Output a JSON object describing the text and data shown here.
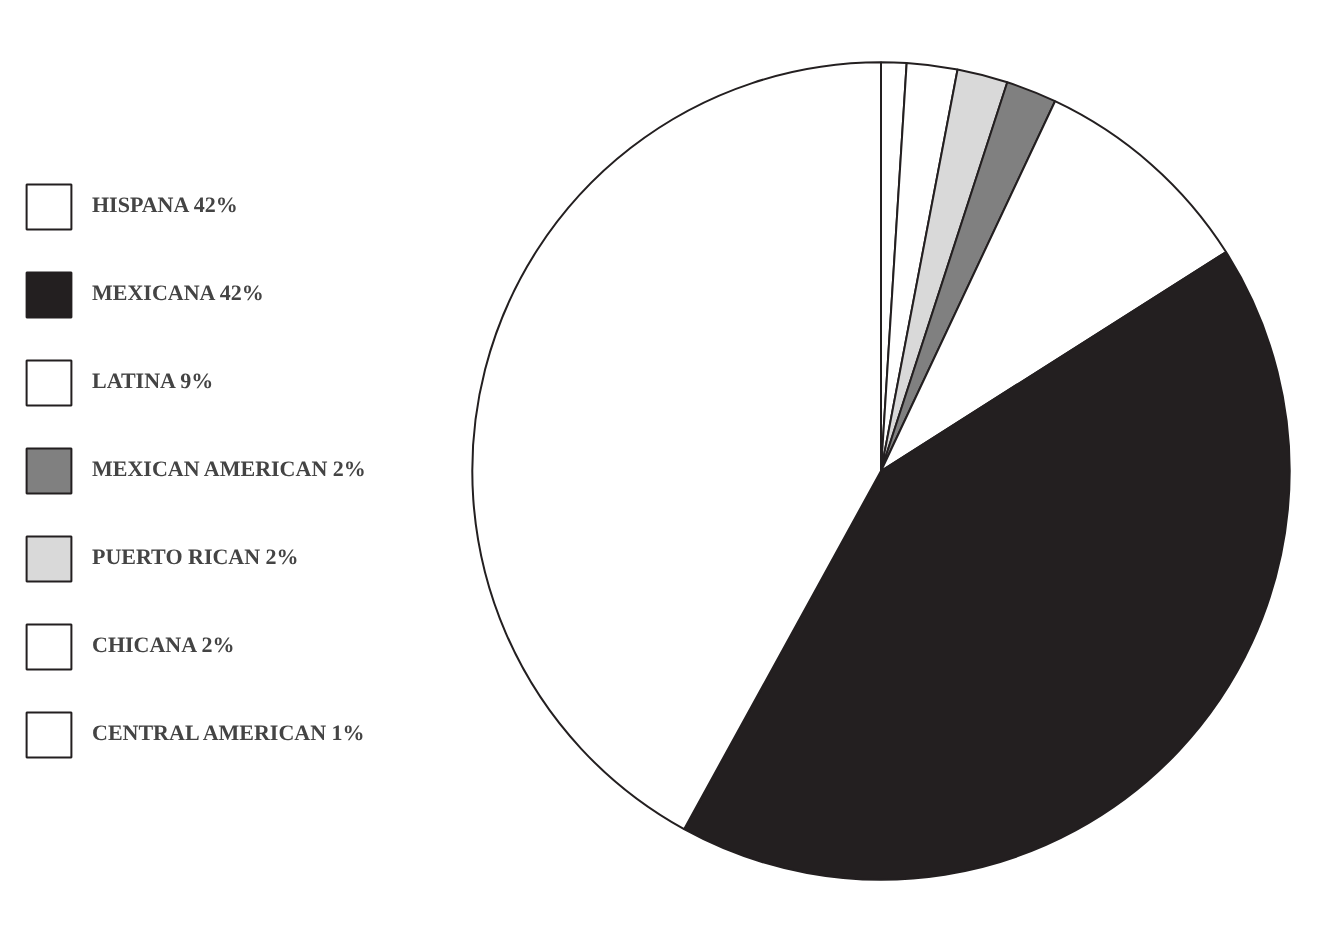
{
  "chart_data": {
    "type": "pie",
    "categories": [
      "HISPANA 42%",
      "MEXICANA 42%",
      "LATINA 9%",
      "MEXICAN AMERICAN 2%",
      "PUERTO RICAN 2%",
      "CHICANA 2%",
      "CENTRAL AMERICAN 1%"
    ],
    "values": [
      42,
      42,
      9,
      2,
      2,
      2,
      1
    ],
    "colors": [
      "#ffffff",
      "#231f20",
      "#ffffff",
      "#808080",
      "#d9d9d9",
      "#ffffff",
      "#ffffff"
    ],
    "legend": "left"
  }
}
